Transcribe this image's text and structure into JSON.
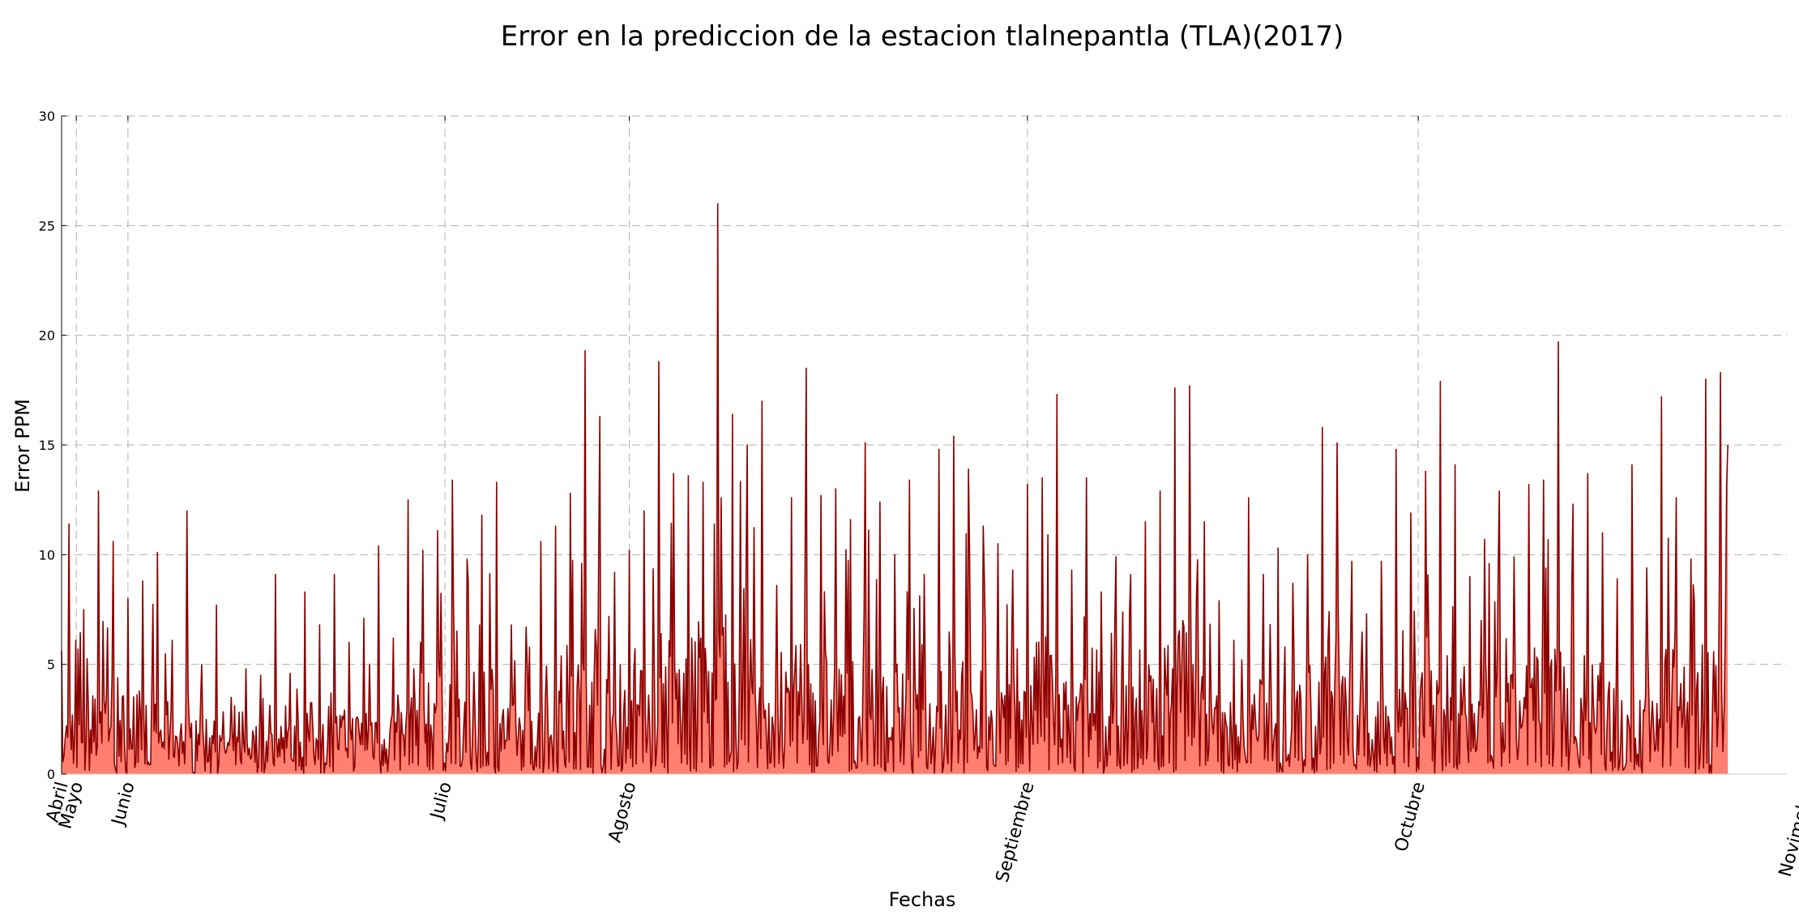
{
  "chart_data": {
    "type": "area",
    "title": "Error en la prediccion de la estacion tlalnepantla (TLA)(2017)",
    "xlabel": "Fechas",
    "ylabel": "Error PPM",
    "ylim": [
      0,
      30
    ],
    "yticks": [
      0,
      5,
      10,
      15,
      20,
      25,
      30
    ],
    "xlim": [
      "2017-04-05",
      "2017-11-25"
    ],
    "x_tick_labels": [
      {
        "label": "Abril",
        "date": "2017-04-05"
      },
      {
        "label": "Mayo",
        "date": "2017-04-07"
      },
      {
        "label": "Junio",
        "date": "2017-04-14"
      },
      {
        "label": "Julio",
        "date": "2017-05-27"
      },
      {
        "label": "Agosto",
        "date": "2017-06-21"
      },
      {
        "label": "Septiembre",
        "date": "2017-08-14"
      },
      {
        "label": "Octubre",
        "date": "2017-10-06"
      },
      {
        "label": "Novimebre",
        "date": "2017-11-28"
      }
    ],
    "grid": true,
    "colors": {
      "line": "#8b0000",
      "fill": "#ff8070"
    },
    "series": [
      {
        "x": [
          "2017-04-05",
          "2017-04-06",
          "2017-04-08",
          "2017-04-10",
          "2017-04-12",
          "2017-04-14",
          "2017-04-16",
          "2017-04-18",
          "2017-04-20",
          "2017-04-22",
          "2017-04-24",
          "2017-04-26",
          "2017-04-28",
          "2017-04-30",
          "2017-05-02",
          "2017-05-04",
          "2017-05-06",
          "2017-05-08",
          "2017-05-10",
          "2017-05-12",
          "2017-05-14",
          "2017-05-16",
          "2017-05-18",
          "2017-05-20",
          "2017-05-22",
          "2017-05-24",
          "2017-05-26",
          "2017-05-28",
          "2017-05-30",
          "2017-06-01",
          "2017-06-03",
          "2017-06-05",
          "2017-06-07",
          "2017-06-09",
          "2017-06-11",
          "2017-06-13",
          "2017-06-15",
          "2017-06-17",
          "2017-06-19",
          "2017-06-21",
          "2017-06-23",
          "2017-06-25",
          "2017-06-27",
          "2017-06-29",
          "2017-07-01",
          "2017-07-03",
          "2017-07-05",
          "2017-07-07",
          "2017-07-09",
          "2017-07-11",
          "2017-07-13",
          "2017-07-15",
          "2017-07-17",
          "2017-07-19",
          "2017-07-21",
          "2017-07-23",
          "2017-07-25",
          "2017-07-27",
          "2017-07-29",
          "2017-07-31",
          "2017-08-02",
          "2017-08-04",
          "2017-08-06",
          "2017-08-08",
          "2017-08-10",
          "2017-08-12",
          "2017-08-14",
          "2017-08-16",
          "2017-08-18",
          "2017-08-20",
          "2017-08-22",
          "2017-08-24",
          "2017-08-26",
          "2017-08-28",
          "2017-08-30",
          "2017-09-01",
          "2017-09-03",
          "2017-09-05",
          "2017-09-07",
          "2017-09-09",
          "2017-09-11",
          "2017-09-13",
          "2017-09-15",
          "2017-09-17",
          "2017-09-19",
          "2017-09-21",
          "2017-09-23",
          "2017-09-25",
          "2017-09-27",
          "2017-09-29",
          "2017-10-01",
          "2017-10-03",
          "2017-10-05",
          "2017-10-07",
          "2017-10-09",
          "2017-10-11",
          "2017-10-13",
          "2017-10-15",
          "2017-10-17",
          "2017-10-19",
          "2017-10-21",
          "2017-10-23",
          "2017-10-25",
          "2017-10-27",
          "2017-10-29",
          "2017-10-31",
          "2017-11-02",
          "2017-11-04",
          "2017-11-06",
          "2017-11-08",
          "2017-11-10",
          "2017-11-12",
          "2017-11-14",
          "2017-11-16",
          "2017-11-17"
        ],
        "values": [
          5.6,
          11.4,
          7.5,
          12.9,
          10.6,
          8.0,
          8.8,
          10.1,
          6.1,
          12.0,
          5.0,
          7.7,
          3.5,
          4.8,
          4.5,
          9.1,
          4.6,
          8.3,
          6.8,
          9.1,
          6.0,
          7.1,
          10.4,
          6.2,
          12.5,
          10.2,
          11.1,
          13.4,
          9.8,
          11.8,
          13.3,
          6.8,
          6.7,
          10.6,
          11.3,
          12.8,
          19.3,
          16.3,
          9.2,
          10.2,
          12.0,
          18.8,
          13.7,
          13.6,
          13.3,
          26.0,
          16.4,
          15.0,
          17.0,
          8.6,
          12.6,
          18.5,
          12.7,
          13.0,
          11.6,
          15.1,
          12.4,
          10.0,
          13.4,
          9.1,
          14.8,
          15.4,
          13.9,
          11.3,
          10.5,
          9.3,
          13.2,
          13.5,
          17.3,
          9.3,
          13.5,
          8.3,
          9.9,
          9.1,
          11.5,
          12.9,
          17.6,
          17.7,
          11.5,
          7.9,
          6.1,
          12.6,
          9.1,
          10.3,
          8.7,
          10.0,
          15.8,
          15.1,
          9.7,
          7.3,
          9.7,
          14.8,
          11.9,
          13.8,
          17.9,
          14.1,
          9.0,
          10.7,
          12.9,
          9.9,
          13.2,
          13.4,
          19.7,
          12.3,
          13.7,
          11.0,
          8.9,
          14.1,
          9.4,
          17.2,
          12.6,
          9.8,
          18.0,
          18.3,
          15.0
        ]
      }
    ]
  }
}
